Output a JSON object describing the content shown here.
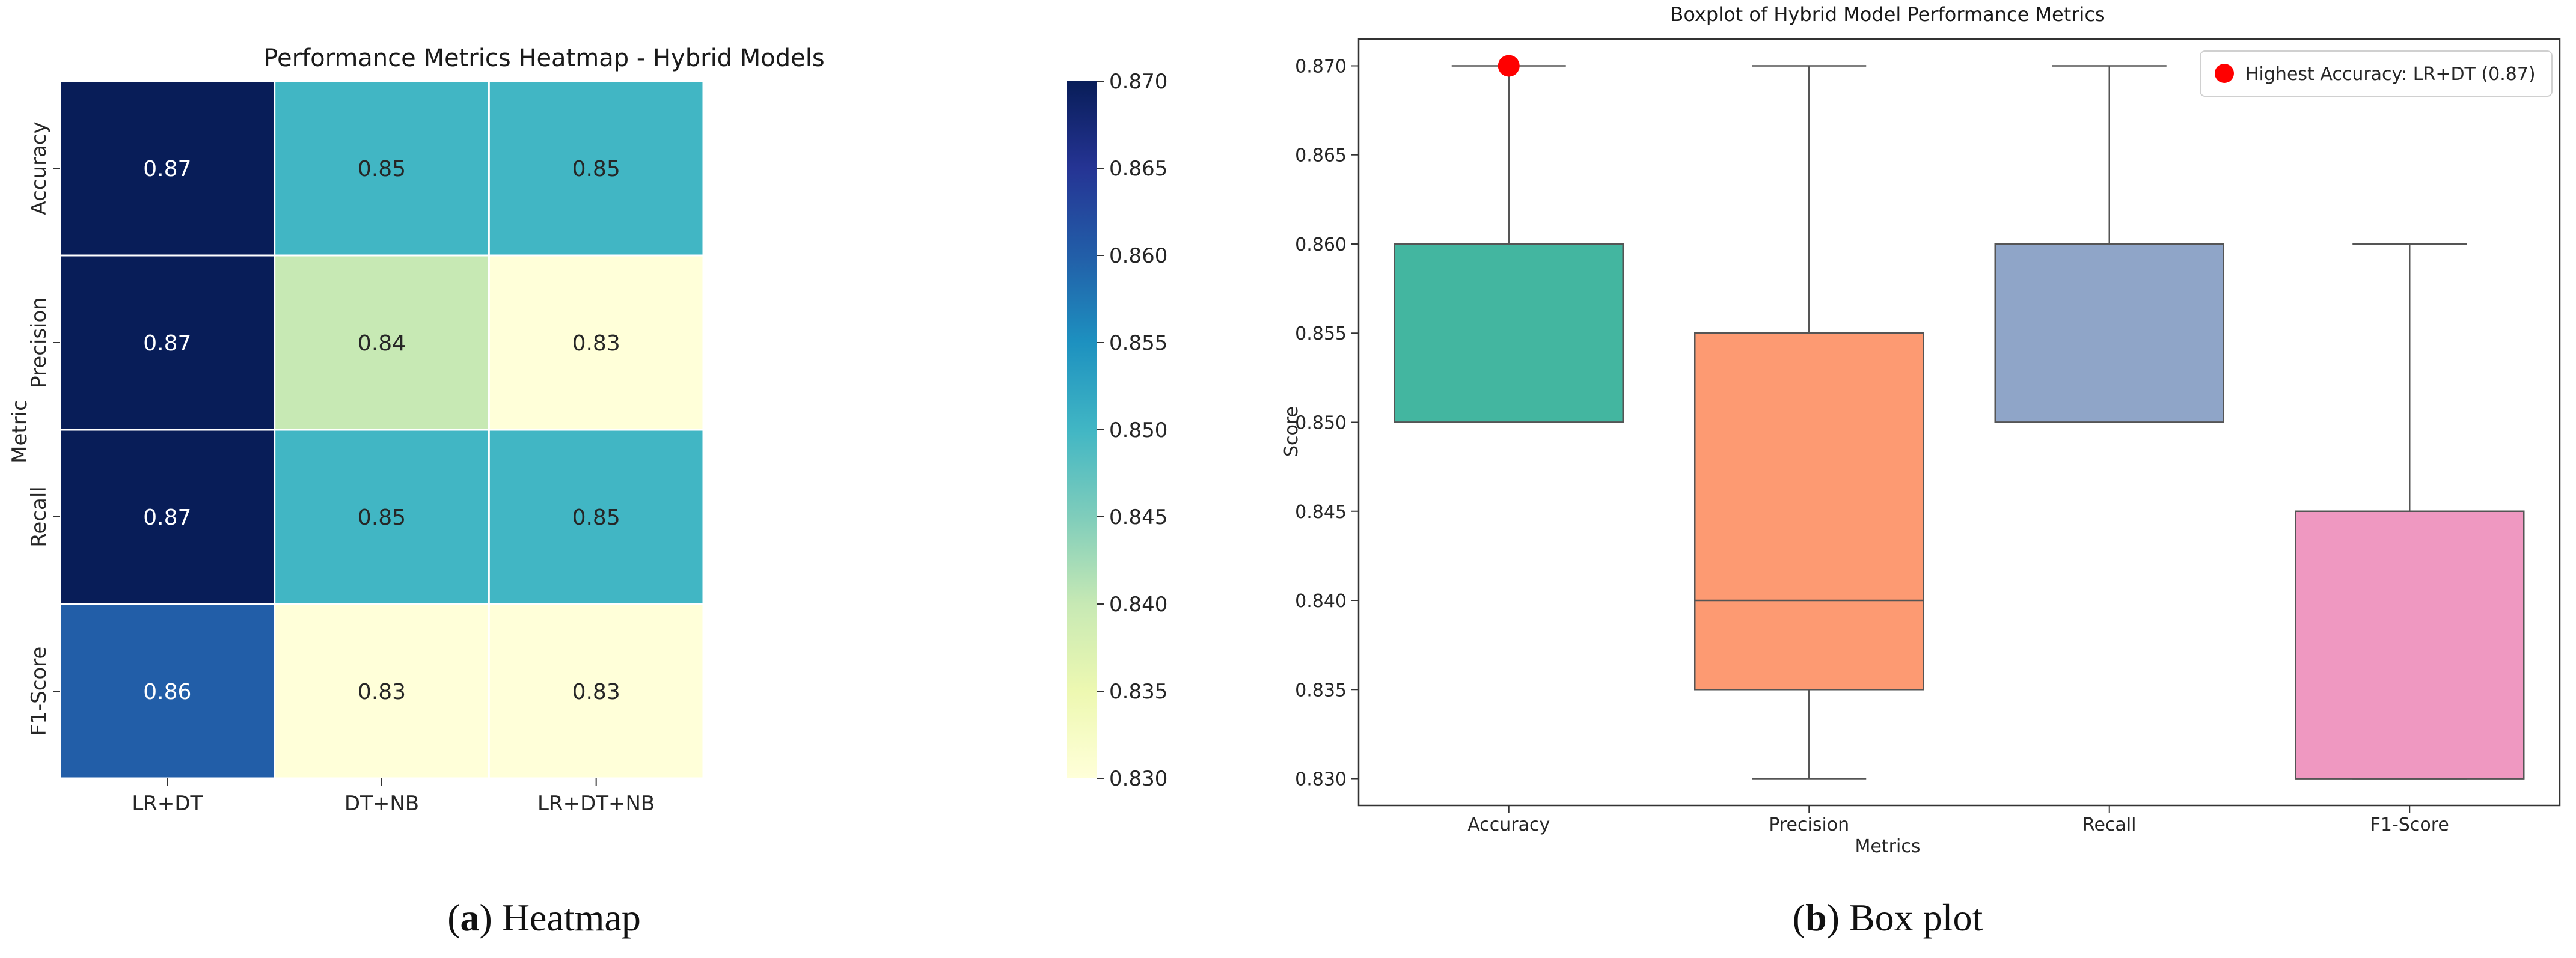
{
  "chart_data": [
    {
      "type": "heatmap",
      "title": "Performance Metrics Heatmap - Hybrid Models",
      "xlabel": "",
      "ylabel": "Metric",
      "columns": [
        "LR+DT",
        "DT+NB",
        "LR+DT+NB"
      ],
      "rows": [
        "Accuracy",
        "Precision",
        "Recall",
        "F1-Score"
      ],
      "values": [
        [
          0.87,
          0.85,
          0.85
        ],
        [
          0.87,
          0.84,
          0.83
        ],
        [
          0.87,
          0.85,
          0.85
        ],
        [
          0.86,
          0.83,
          0.83
        ]
      ],
      "value_labels": [
        [
          "0.87",
          "0.85",
          "0.85"
        ],
        [
          "0.87",
          "0.84",
          "0.83"
        ],
        [
          "0.87",
          "0.85",
          "0.85"
        ],
        [
          "0.86",
          "0.83",
          "0.83"
        ]
      ],
      "colormap": "YlGnBu",
      "colormap_stops": [
        "#ffffd9",
        "#edf8b1",
        "#c7e9b4",
        "#7fcdbb",
        "#41b6c4",
        "#1d91c0",
        "#225ea8",
        "#253494",
        "#081d58"
      ],
      "vmin": 0.83,
      "vmax": 0.87,
      "colorbar_ticks": [
        "0.830",
        "0.835",
        "0.840",
        "0.845",
        "0.850",
        "0.855",
        "0.860",
        "0.865",
        "0.870"
      ],
      "caption_letter": "a",
      "caption_text": ") Heatmap"
    },
    {
      "type": "box",
      "title": "Boxplot of Hybrid Model Performance Metrics",
      "xlabel": "Metrics",
      "ylabel": "Score",
      "ylim": [
        0.8285,
        0.8715
      ],
      "yticks": [
        "0.830",
        "0.835",
        "0.840",
        "0.845",
        "0.850",
        "0.855",
        "0.860",
        "0.865",
        "0.870"
      ],
      "categories": [
        "Accuracy",
        "Precision",
        "Recall",
        "F1-Score"
      ],
      "boxes": [
        {
          "name": "Accuracy",
          "min": 0.85,
          "q1": 0.85,
          "median": 0.85,
          "q3": 0.86,
          "max": 0.87,
          "color": "#43b6a0"
        },
        {
          "name": "Precision",
          "min": 0.83,
          "q1": 0.835,
          "median": 0.84,
          "q3": 0.855,
          "max": 0.87,
          "color": "#fd9a72"
        },
        {
          "name": "Recall",
          "min": 0.85,
          "q1": 0.85,
          "median": 0.85,
          "q3": 0.86,
          "max": 0.87,
          "color": "#8fa5c8"
        },
        {
          "name": "F1-Score",
          "min": 0.83,
          "q1": 0.83,
          "median": 0.83,
          "q3": 0.845,
          "max": 0.86,
          "color": "#ef98c1"
        }
      ],
      "highlight": {
        "category": "Accuracy",
        "value": 0.87,
        "color": "#ff0000"
      },
      "legend": {
        "label": "Highest Accuracy: LR+DT (0.87)",
        "position": "top-right"
      },
      "caption_letter": "b",
      "caption_text": ") Box plot"
    }
  ]
}
